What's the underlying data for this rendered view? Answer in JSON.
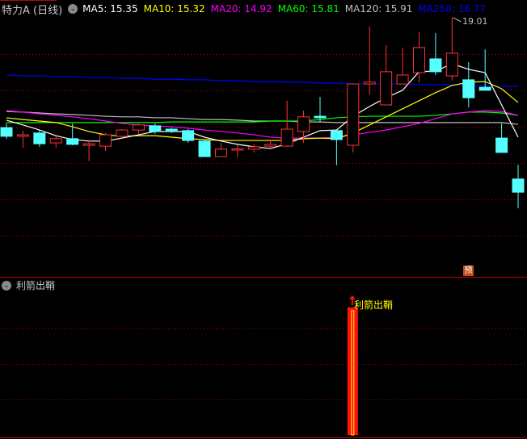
{
  "header": {
    "title": "特力A (日线)",
    "ma_labels": [
      {
        "text": "MA5: 15.35",
        "color": "#ffffff"
      },
      {
        "text": "MA10: 15.32",
        "color": "#ffff00"
      },
      {
        "text": "MA20: 14.92",
        "color": "#ff00ff"
      },
      {
        "text": "MA60: 15.81",
        "color": "#00ff00"
      },
      {
        "text": "MA120: 15.91",
        "color": "#c0c0c0"
      },
      {
        "text": "MA250: 16.77",
        "color": "#0000ff"
      }
    ]
  },
  "indicator": {
    "title": "利箭出鞘",
    "signal_label": "利箭出鞘",
    "signal_candle_index": 21
  },
  "forecast_badge": "预",
  "high_annotation": "19.01",
  "colors": {
    "up": "#ff3333",
    "down": "#54ffff",
    "grid": "#b00000",
    "background": "#000000"
  },
  "chart_data": {
    "type": "candlestick",
    "title": "特力A (日线)",
    "candles": [
      {
        "o": 15.33,
        "h": 15.47,
        "l": 14.96,
        "c": 15.04
      },
      {
        "o": 15.04,
        "h": 15.23,
        "l": 14.66,
        "c": 15.09
      },
      {
        "o": 15.15,
        "h": 15.25,
        "l": 14.69,
        "c": 14.79
      },
      {
        "o": 14.82,
        "h": 15.04,
        "l": 14.66,
        "c": 14.96
      },
      {
        "o": 14.96,
        "h": 15.47,
        "l": 14.74,
        "c": 14.77
      },
      {
        "o": 14.74,
        "h": 14.93,
        "l": 14.2,
        "c": 14.79
      },
      {
        "o": 14.71,
        "h": 15.15,
        "l": 14.55,
        "c": 15.09
      },
      {
        "o": 15.04,
        "h": 15.28,
        "l": 14.98,
        "c": 15.25
      },
      {
        "o": 15.25,
        "h": 15.47,
        "l": 15.12,
        "c": 15.42
      },
      {
        "o": 15.39,
        "h": 15.47,
        "l": 15.12,
        "c": 15.2
      },
      {
        "o": 15.28,
        "h": 15.33,
        "l": 15.15,
        "c": 15.2
      },
      {
        "o": 15.23,
        "h": 15.28,
        "l": 14.82,
        "c": 14.9
      },
      {
        "o": 14.88,
        "h": 14.93,
        "l": 14.36,
        "c": 14.36
      },
      {
        "o": 14.36,
        "h": 14.82,
        "l": 14.36,
        "c": 14.61
      },
      {
        "o": 14.61,
        "h": 14.74,
        "l": 14.34,
        "c": 14.62
      },
      {
        "o": 14.61,
        "h": 14.79,
        "l": 14.5,
        "c": 14.69
      },
      {
        "o": 14.71,
        "h": 14.93,
        "l": 14.63,
        "c": 14.77
      },
      {
        "o": 14.71,
        "h": 16.23,
        "l": 14.69,
        "c": 15.28
      },
      {
        "o": 15.2,
        "h": 15.9,
        "l": 14.82,
        "c": 15.69
      },
      {
        "o": 15.71,
        "h": 16.36,
        "l": 15.5,
        "c": 15.66
      },
      {
        "o": 15.23,
        "h": 15.25,
        "l": 14.07,
        "c": 14.93
      },
      {
        "o": 14.74,
        "h": 16.79,
        "l": 14.5,
        "c": 16.79
      },
      {
        "o": 16.79,
        "h": 18.71,
        "l": 16.44,
        "c": 16.85
      },
      {
        "o": 16.09,
        "h": 18.09,
        "l": 16.09,
        "c": 17.2
      },
      {
        "o": 16.79,
        "h": 18.01,
        "l": 16.79,
        "c": 17.09
      },
      {
        "o": 17.17,
        "h": 18.52,
        "l": 16.85,
        "c": 18.01
      },
      {
        "o": 17.63,
        "h": 18.49,
        "l": 17.09,
        "c": 17.2
      },
      {
        "o": 17.06,
        "h": 19.01,
        "l": 16.9,
        "c": 17.82
      },
      {
        "o": 16.93,
        "h": 17.52,
        "l": 16.01,
        "c": 16.33
      },
      {
        "o": 16.68,
        "h": 17.95,
        "l": 16.58,
        "c": 16.58
      },
      {
        "o": 14.98,
        "h": 15.47,
        "l": 14.5,
        "c": 14.5
      },
      {
        "o": 13.61,
        "h": 14.09,
        "l": 12.63,
        "c": 13.17
      }
    ],
    "series": [
      {
        "name": "MA5",
        "color": "#ffffff",
        "values": [
          15.58,
          15.42,
          15.25,
          15.06,
          14.93,
          14.88,
          14.88,
          14.98,
          15.09,
          15.2,
          15.2,
          15.2,
          15.01,
          14.88,
          14.77,
          14.69,
          14.63,
          14.79,
          15.01,
          15.23,
          15.25,
          15.71,
          16.04,
          16.33,
          16.58,
          17.2,
          17.22,
          17.47,
          17.28,
          17.17,
          16.09,
          15.01
        ]
      },
      {
        "name": "MA10",
        "color": "#ffff00",
        "values": [
          15.66,
          15.6,
          15.55,
          15.5,
          15.36,
          15.2,
          15.09,
          15.04,
          15.06,
          15.06,
          15.01,
          14.96,
          14.93,
          14.9,
          14.9,
          14.9,
          14.9,
          14.9,
          14.96,
          14.98,
          14.96,
          15.15,
          15.42,
          15.69,
          15.96,
          16.23,
          16.5,
          16.74,
          16.85,
          16.87,
          16.63,
          16.17
        ]
      },
      {
        "name": "MA20",
        "color": "#ff00ff",
        "values": [
          15.9,
          15.85,
          15.79,
          15.74,
          15.69,
          15.63,
          15.55,
          15.47,
          15.42,
          15.39,
          15.36,
          15.31,
          15.25,
          15.2,
          15.15,
          15.09,
          15.01,
          14.98,
          14.98,
          14.98,
          15.01,
          15.09,
          15.17,
          15.25,
          15.36,
          15.47,
          15.63,
          15.79,
          15.85,
          15.9,
          15.87,
          15.74
        ]
      },
      {
        "name": "MA60",
        "color": "#00ff00",
        "values": [
          15.5,
          15.5,
          15.5,
          15.5,
          15.5,
          15.5,
          15.5,
          15.5,
          15.5,
          15.5,
          15.52,
          15.52,
          15.52,
          15.52,
          15.52,
          15.52,
          15.55,
          15.55,
          15.55,
          15.6,
          15.66,
          15.69,
          15.71,
          15.71,
          15.71,
          15.71,
          15.74,
          15.79,
          15.85,
          15.85,
          15.82,
          15.74
        ]
      },
      {
        "name": "MA120",
        "color": "#c0c0c0",
        "values": [
          15.87,
          15.85,
          15.82,
          15.79,
          15.77,
          15.74,
          15.71,
          15.69,
          15.69,
          15.66,
          15.66,
          15.63,
          15.6,
          15.6,
          15.58,
          15.55,
          15.55,
          15.55,
          15.52,
          15.52,
          15.5,
          15.5,
          15.5,
          15.5,
          15.5,
          15.5,
          15.5,
          15.5,
          15.5,
          15.5,
          15.5,
          15.44
        ]
      },
      {
        "name": "MA250",
        "color": "#0000ff",
        "values": [
          17.09,
          17.06,
          17.06,
          17.04,
          17.04,
          17.01,
          17.01,
          16.98,
          16.98,
          16.95,
          16.95,
          16.93,
          16.93,
          16.9,
          16.9,
          16.87,
          16.87,
          16.85,
          16.85,
          16.82,
          16.82,
          16.79,
          16.79,
          16.79,
          16.79,
          16.77,
          16.77,
          16.77,
          16.74,
          16.74,
          16.71,
          16.71
        ]
      }
    ],
    "high_marker": {
      "index": 27,
      "value": 19.01
    },
    "grid": true
  }
}
